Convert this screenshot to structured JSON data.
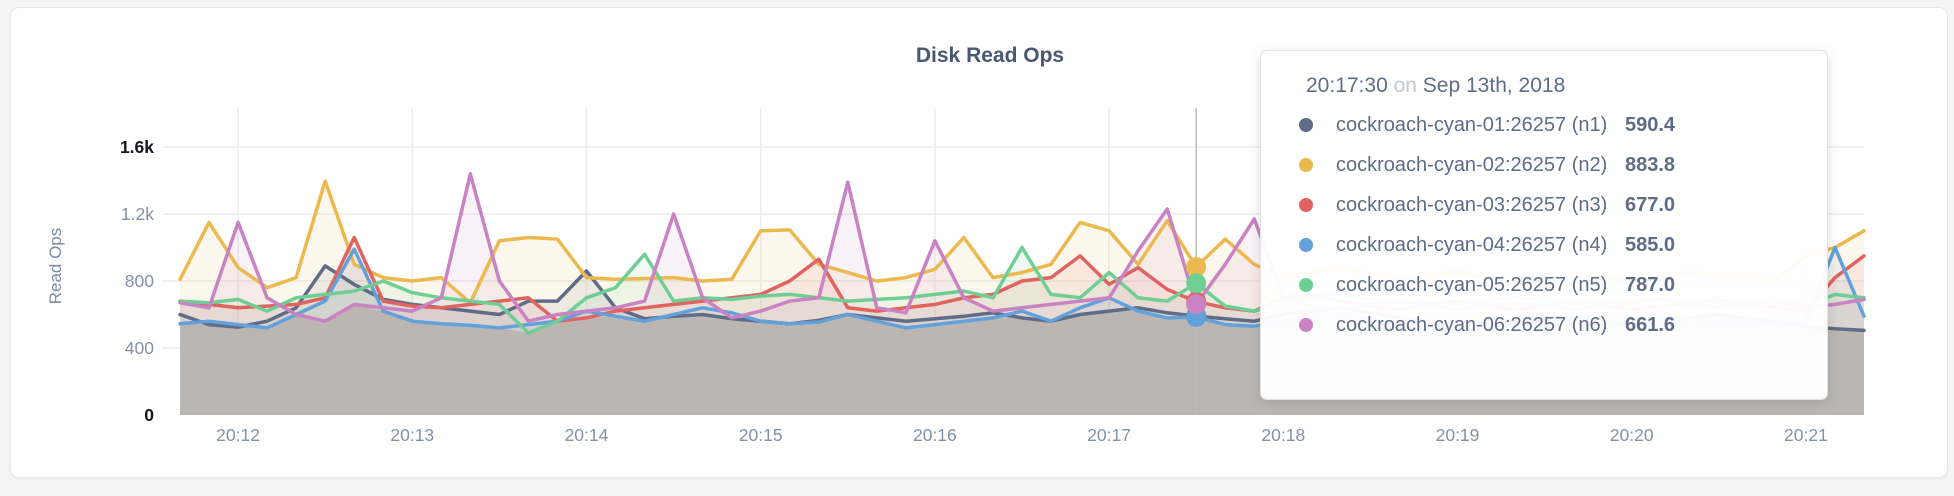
{
  "page": {
    "background": "#f5f5f6",
    "card_background": "#ffffff"
  },
  "chart_data": {
    "type": "line",
    "title": "Disk Read Ops",
    "xlabel": "",
    "ylabel": "Read Ops",
    "ylim": [
      0,
      1600
    ],
    "grid": true,
    "legend_position": "tooltip-only",
    "x_range": [
      "20:11:40",
      "20:21:20"
    ],
    "x_step_seconds": 10,
    "x_ticks": [
      "20:12",
      "20:13",
      "20:14",
      "20:15",
      "20:16",
      "20:17",
      "20:18",
      "20:19",
      "20:20",
      "20:21"
    ],
    "y_ticks": [
      {
        "value": 0,
        "label": "0",
        "emphasis": true
      },
      {
        "value": 400,
        "label": "400",
        "emphasis": false
      },
      {
        "value": 800,
        "label": "800",
        "emphasis": false
      },
      {
        "value": 1200,
        "label": "1.2k",
        "emphasis": false
      },
      {
        "value": 1600,
        "label": "1.6k",
        "emphasis": true
      }
    ],
    "guideline_color": "#bdbdbd",
    "hover_index": 35,
    "series": [
      {
        "name": "cockroach-cyan-01:26257 (n1)",
        "color": "#5f6c87",
        "values": [
          600,
          540,
          525,
          560,
          640,
          890,
          780,
          690,
          660,
          640,
          620,
          600,
          680,
          680,
          860,
          640,
          575,
          590,
          600,
          575,
          560,
          545,
          565,
          600,
          580,
          560,
          575,
          590,
          610,
          580,
          560,
          600,
          620,
          640,
          610,
          590.4,
          575,
          560,
          600,
          620,
          640,
          610,
          580,
          560,
          545,
          555,
          570,
          590,
          575,
          555,
          540,
          560,
          580,
          600,
          575,
          555,
          530,
          515,
          505
        ]
      },
      {
        "name": "cockroach-cyan-02:26257 (n2)",
        "color": "#ecb94f",
        "values": [
          810,
          1150,
          880,
          760,
          820,
          1397,
          900,
          820,
          800,
          820,
          670,
          1040,
          1060,
          1050,
          820,
          810,
          815,
          820,
          800,
          810,
          1100,
          1105,
          900,
          850,
          800,
          820,
          870,
          1060,
          820,
          850,
          900,
          1150,
          1100,
          900,
          1160,
          883.8,
          1050,
          900,
          820,
          850,
          880,
          840,
          800,
          830,
          860,
          820,
          790,
          810,
          840,
          820,
          800,
          830,
          860,
          820,
          840,
          810,
          950,
          1000,
          1100
        ]
      },
      {
        "name": "cockroach-cyan-03:26257 (n3)",
        "color": "#e0635f",
        "values": [
          680,
          660,
          640,
          650,
          660,
          700,
          1060,
          680,
          650,
          640,
          660,
          680,
          700,
          560,
          580,
          620,
          640,
          660,
          680,
          700,
          720,
          800,
          930,
          640,
          620,
          640,
          660,
          700,
          720,
          800,
          820,
          950,
          780,
          880,
          750,
          677,
          640,
          620,
          700,
          720,
          680,
          650,
          630,
          660,
          680,
          650,
          630,
          650,
          670,
          650,
          630,
          650,
          670,
          690,
          660,
          640,
          620,
          820,
          950
        ]
      },
      {
        "name": "cockroach-cyan-04:26257 (n4)",
        "color": "#62a1da",
        "values": [
          545,
          560,
          540,
          520,
          600,
          680,
          990,
          620,
          560,
          545,
          535,
          520,
          540,
          560,
          620,
          590,
          560,
          600,
          640,
          610,
          560,
          545,
          555,
          600,
          560,
          520,
          540,
          560,
          580,
          620,
          560,
          640,
          700,
          620,
          580,
          585,
          540,
          530,
          560,
          580,
          600,
          570,
          550,
          530,
          545,
          560,
          540,
          560,
          580,
          560,
          540,
          555,
          570,
          550,
          560,
          545,
          560,
          1000,
          590
        ]
      },
      {
        "name": "cockroach-cyan-05:26257 (n5)",
        "color": "#6fce94",
        "values": [
          680,
          670,
          690,
          620,
          700,
          720,
          740,
          800,
          730,
          700,
          680,
          660,
          490,
          560,
          700,
          760,
          960,
          680,
          700,
          690,
          710,
          720,
          700,
          680,
          690,
          700,
          720,
          740,
          700,
          1000,
          720,
          700,
          850,
          700,
          680,
          787,
          650,
          620,
          680,
          700,
          720,
          690,
          670,
          650,
          660,
          680,
          700,
          680,
          660,
          670,
          690,
          700,
          680,
          660,
          680,
          700,
          650,
          720,
          700
        ]
      },
      {
        "name": "cockroach-cyan-06:26257 (n6)",
        "color": "#c983c3",
        "values": [
          670,
          640,
          1150,
          700,
          600,
          560,
          660,
          640,
          620,
          700,
          1440,
          800,
          560,
          600,
          620,
          640,
          680,
          1200,
          700,
          580,
          620,
          680,
          700,
          1390,
          640,
          610,
          1040,
          700,
          620,
          640,
          660,
          680,
          700,
          980,
          1230,
          661.6,
          900,
          1170,
          700,
          650,
          630,
          660,
          680,
          650,
          630,
          650,
          670,
          650,
          630,
          650,
          670,
          690,
          660,
          640,
          660,
          680,
          640,
          660,
          690
        ]
      }
    ]
  },
  "tooltip": {
    "time": "20:17:30",
    "conjunction": "on",
    "date": "Sep 13th, 2018",
    "rows": [
      {
        "name": "cockroach-cyan-01:26257 (n1)",
        "value": "590.4",
        "color": "#5f6c87"
      },
      {
        "name": "cockroach-cyan-02:26257 (n2)",
        "value": "883.8",
        "color": "#ecb94f"
      },
      {
        "name": "cockroach-cyan-03:26257 (n3)",
        "value": "677.0",
        "color": "#e0635f"
      },
      {
        "name": "cockroach-cyan-04:26257 (n4)",
        "value": "585.0",
        "color": "#62a1da"
      },
      {
        "name": "cockroach-cyan-05:26257 (n5)",
        "value": "787.0",
        "color": "#6fce94"
      },
      {
        "name": "cockroach-cyan-06:26257 (n6)",
        "value": "661.6",
        "color": "#c983c3"
      }
    ]
  }
}
